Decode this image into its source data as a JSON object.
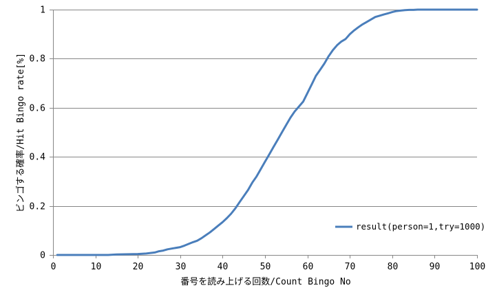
{
  "chart_data": {
    "type": "line",
    "xlabel": "番号を読み上げる回数/Count Bingo No",
    "ylabel": "ビンゴする確率/Hit Bingo rate[%]",
    "xlim": [
      0,
      100
    ],
    "ylim": [
      0,
      1
    ],
    "x_ticks": [
      0,
      10,
      20,
      30,
      40,
      50,
      60,
      70,
      80,
      90,
      100
    ],
    "y_ticks": [
      0,
      0.2,
      0.4,
      0.6,
      0.8,
      1
    ],
    "x_tick_labels": [
      "0",
      "10",
      "20",
      "30",
      "40",
      "50",
      "60",
      "70",
      "80",
      "90",
      "100"
    ],
    "y_tick_labels": [
      "0",
      "0.2",
      "0.4",
      "0.6",
      "0.8",
      "1"
    ],
    "grid": "horizontal",
    "legend_position": "bottom-right",
    "series": [
      {
        "name": "result(person=1,try=1000)",
        "color": "#4a7ebb",
        "x": [
          1,
          5,
          10,
          13,
          15,
          18,
          20,
          22,
          24,
          25,
          26,
          27,
          28,
          30,
          31,
          32,
          33,
          34,
          35,
          36,
          37,
          38,
          39,
          40,
          41,
          42,
          43,
          44,
          45,
          46,
          47,
          48,
          49,
          50,
          51,
          52,
          53,
          54,
          55,
          56,
          57,
          58,
          59,
          60,
          61,
          62,
          63,
          64,
          65,
          66,
          67,
          68,
          69,
          70,
          71,
          72,
          73,
          74,
          75,
          76,
          77,
          78,
          79,
          80,
          81,
          82,
          83,
          84,
          85,
          86,
          87,
          88,
          89,
          90,
          95,
          100
        ],
        "y": [
          0,
          0,
          0,
          0,
          0.002,
          0.003,
          0.004,
          0.006,
          0.01,
          0.015,
          0.018,
          0.023,
          0.026,
          0.032,
          0.038,
          0.045,
          0.052,
          0.058,
          0.068,
          0.08,
          0.092,
          0.106,
          0.12,
          0.134,
          0.15,
          0.168,
          0.19,
          0.215,
          0.24,
          0.265,
          0.295,
          0.32,
          0.35,
          0.38,
          0.41,
          0.44,
          0.47,
          0.5,
          0.53,
          0.56,
          0.585,
          0.605,
          0.625,
          0.66,
          0.695,
          0.73,
          0.755,
          0.78,
          0.81,
          0.835,
          0.855,
          0.87,
          0.88,
          0.9,
          0.915,
          0.928,
          0.94,
          0.95,
          0.96,
          0.97,
          0.975,
          0.98,
          0.985,
          0.99,
          0.994,
          0.996,
          0.998,
          0.999,
          0.999,
          1,
          1,
          1,
          1,
          1,
          1,
          1
        ]
      }
    ]
  }
}
